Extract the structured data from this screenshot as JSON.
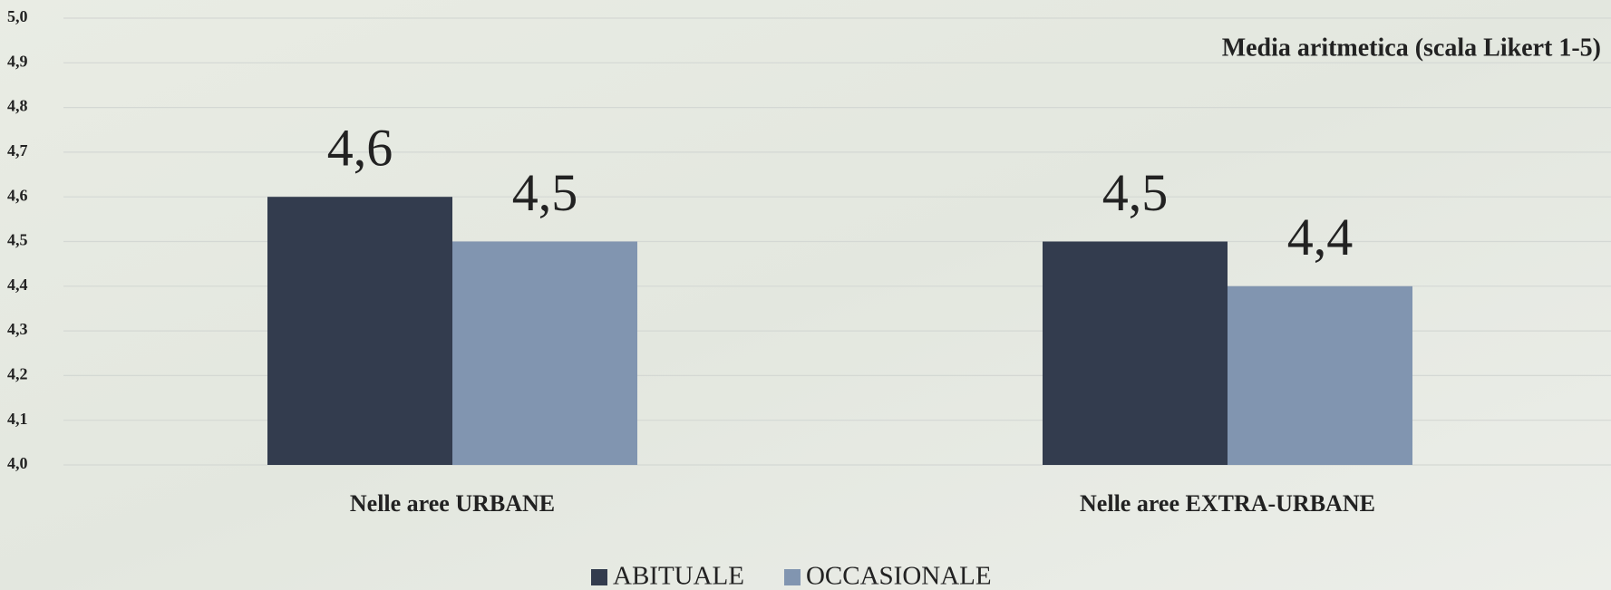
{
  "chart_data": {
    "type": "bar",
    "title": "Media aritmetica (scala Likert 1-5)",
    "categories": [
      "Nelle aree URBANE",
      "Nelle aree EXTRA-URBANE"
    ],
    "series": [
      {
        "name": "ABITUALE",
        "color": "#333c4e",
        "values": [
          4.6,
          4.5
        ],
        "value_labels": [
          "4,6",
          "4,5"
        ]
      },
      {
        "name": "OCCASIONALE",
        "color": "#8195b0",
        "values": [
          4.5,
          4.4
        ],
        "value_labels": [
          "4,5",
          "4,4"
        ]
      }
    ],
    "ylim": [
      4.0,
      5.0
    ],
    "yticks": [
      {
        "value": 4.0,
        "label": "4,0"
      },
      {
        "value": 4.1,
        "label": "4,1"
      },
      {
        "value": 4.2,
        "label": "4,2"
      },
      {
        "value": 4.3,
        "label": "4,3"
      },
      {
        "value": 4.4,
        "label": "4,4"
      },
      {
        "value": 4.5,
        "label": "4,5"
      },
      {
        "value": 4.6,
        "label": "4,6"
      },
      {
        "value": 4.7,
        "label": "4,7"
      },
      {
        "value": 4.8,
        "label": "4,8"
      },
      {
        "value": 4.9,
        "label": "4,9"
      },
      {
        "value": 5.0,
        "label": "5,0"
      }
    ],
    "grid": true,
    "legend": "bottom"
  }
}
